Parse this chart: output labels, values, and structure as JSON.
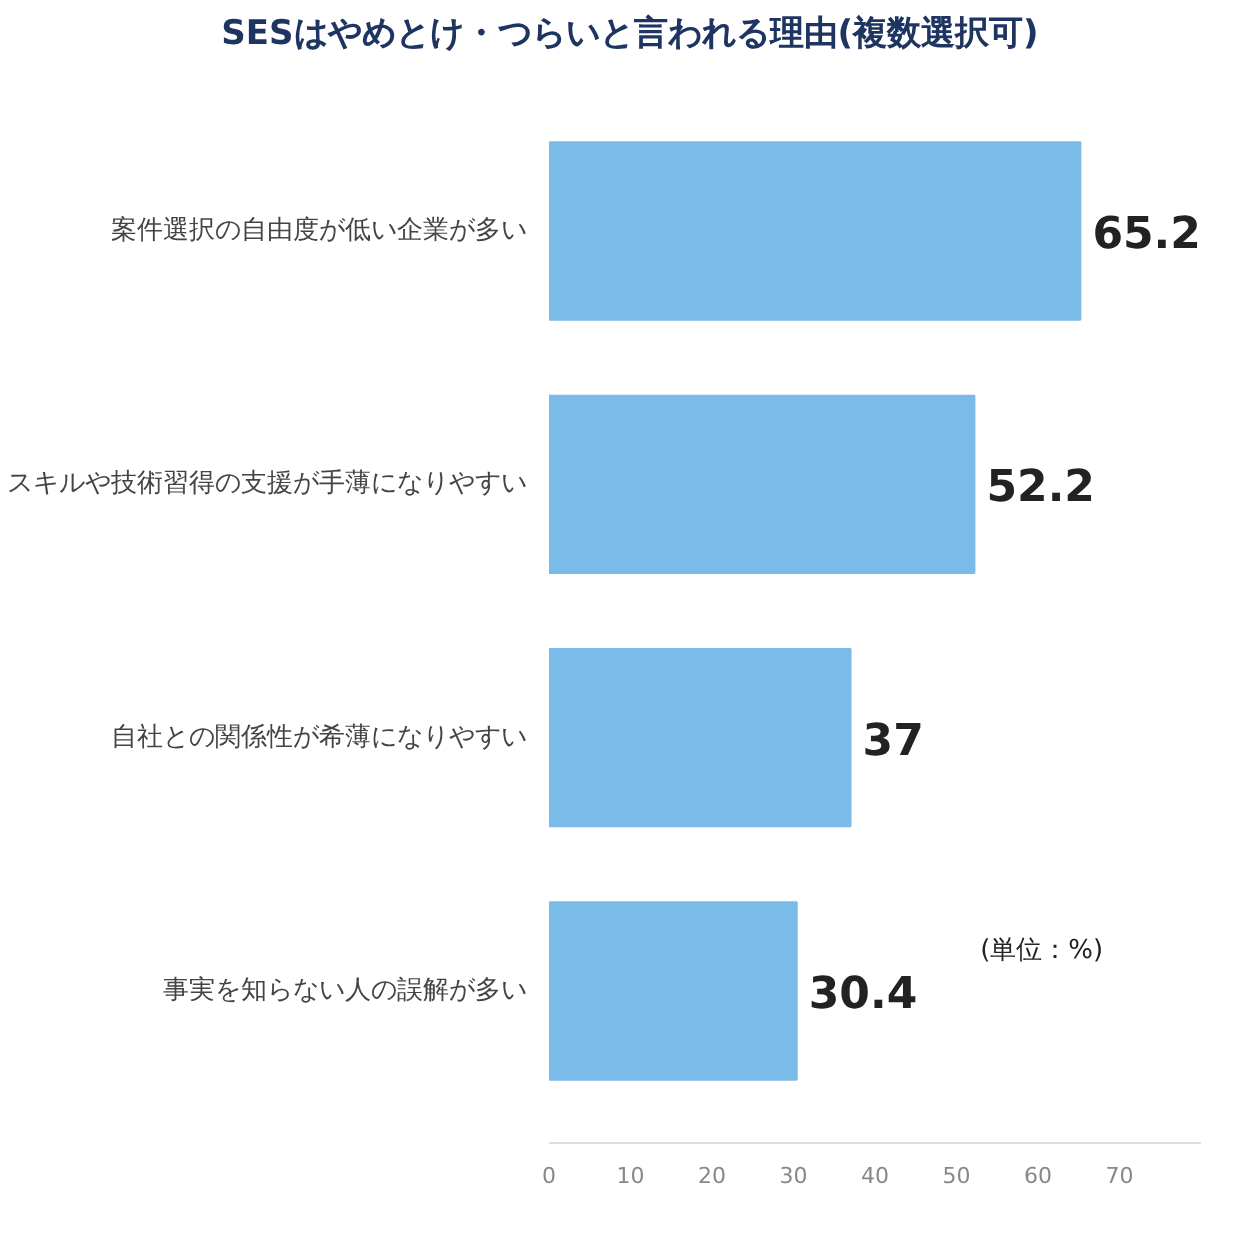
{
  "chart_data": {
    "type": "bar",
    "orientation": "horizontal",
    "title": "SESはやめとけ・つらいと言われる理由(複数選択可)",
    "categories": [
      "案件選択の自由度が低い企業が多い",
      "スキルや技術習得の支援が手薄になりやすい",
      "自社との関係性が希薄になりやすい",
      "事実を知らない人の誤解が多い"
    ],
    "values": [
      65.2,
      52.2,
      37,
      30.4
    ],
    "color": "#7bbbe9",
    "data_labels": true,
    "xlim": [
      0,
      80
    ],
    "xticks": [
      0,
      10,
      20,
      30,
      40,
      50,
      60,
      70
    ],
    "grid": false,
    "annotations": [
      "(単位：%)"
    ]
  }
}
